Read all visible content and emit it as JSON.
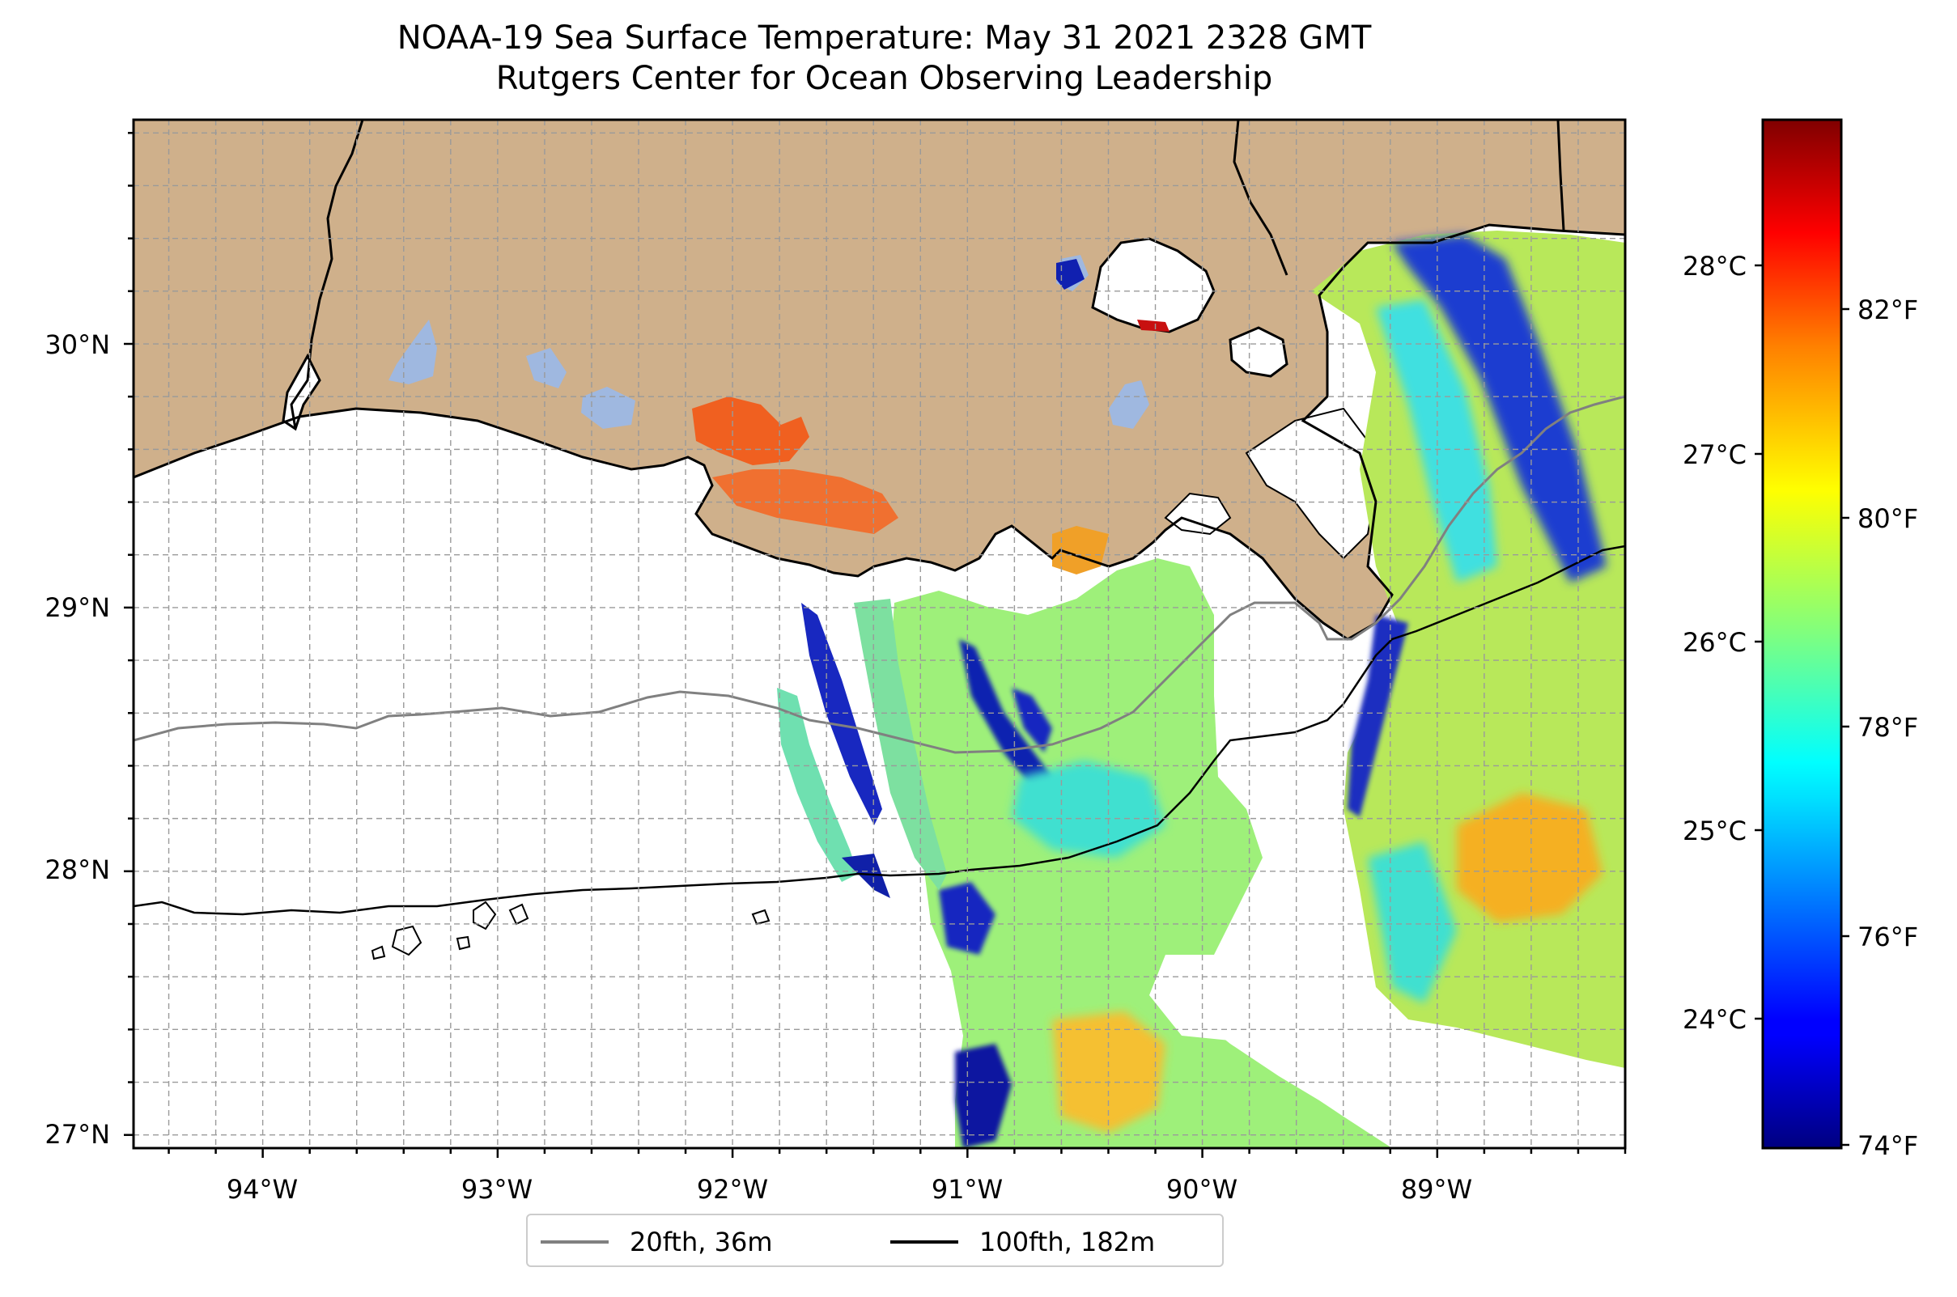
{
  "title": {
    "line1": "NOAA-19 Sea Surface Temperature: May 31 2021 2328 GMT",
    "line2": "Rutgers Center for Ocean Observing Leadership"
  },
  "map": {
    "lon_range": [
      -94.55,
      -88.2
    ],
    "lat_range": [
      26.95,
      30.85
    ],
    "lon_tick_labels": [
      "94°W",
      "93°W",
      "92°W",
      "91°W",
      "90°W",
      "89°W"
    ],
    "lat_tick_labels": [
      "27°N",
      "28°N",
      "29°N",
      "30°N"
    ],
    "gridlines": true,
    "land_color": "#cfb08b",
    "ocean_no_data_color": "#ffffff",
    "inland_water_color": "#9fb8e0"
  },
  "colorbar": {
    "colormap": "jet",
    "range_f": [
      73.9,
      84.2
    ],
    "celsius_tick_labels": [
      "24°C",
      "25°C",
      "26°C",
      "27°C",
      "28°C"
    ],
    "fahrenheit_tick_labels": [
      "74°F",
      "76°F",
      "78°F",
      "80°F",
      "82°F"
    ]
  },
  "legend": {
    "placement": "bottom-center",
    "items": [
      {
        "label": "20fth, 36m",
        "color": "#808080"
      },
      {
        "label": "100fth, 182m",
        "color": "#000000"
      }
    ]
  }
}
